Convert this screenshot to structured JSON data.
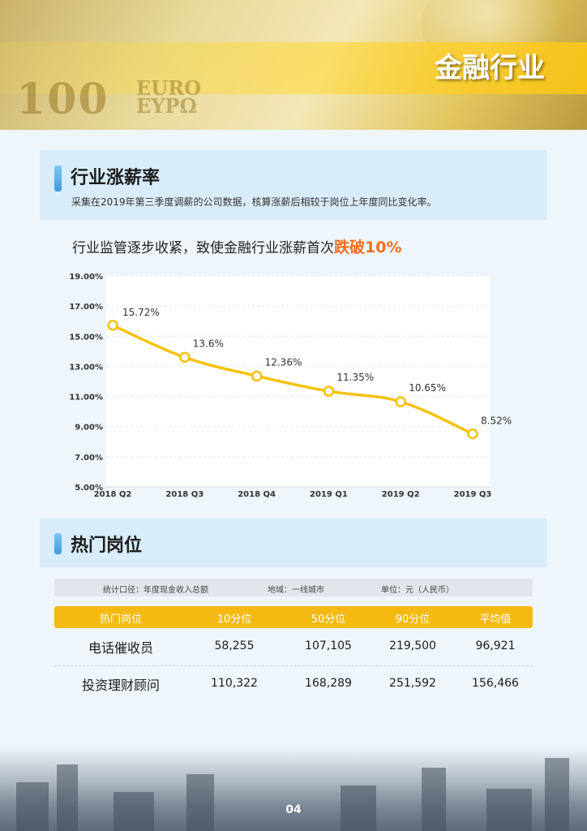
{
  "header": {
    "title": "金融行业",
    "note_value": "100",
    "note_text_top": "EURO",
    "note_text_bottom": "ΕΥΡΩ"
  },
  "section1": {
    "title": "行业涨薪率",
    "description": "采集在2019年第三季度调薪的公司数据，核算涨薪后相较于岗位上年度同比变化率。",
    "headline_prefix": "行业监管逐步收紧，致使金融行业涨薪首次",
    "headline_highlight": "跌破10%"
  },
  "chart_data": {
    "type": "line",
    "categories": [
      "2018 Q2",
      "2018 Q3",
      "2018 Q4",
      "2019 Q1",
      "2019 Q2",
      "2019 Q3"
    ],
    "values": [
      15.72,
      13.6,
      12.36,
      11.35,
      10.65,
      8.52
    ],
    "data_labels": [
      "15.72%",
      "13.6%",
      "12.36%",
      "11.35%",
      "10.65%",
      "8.52%"
    ],
    "yticks": [
      "5.00%",
      "7.00%",
      "9.00%",
      "11.00%",
      "13.00%",
      "15.00%",
      "17.00%",
      "19.00%"
    ],
    "ylim": [
      5,
      19
    ],
    "grid": true,
    "line_color": "#f5c20c",
    "title": "",
    "xlabel": "",
    "ylabel": ""
  },
  "section2": {
    "title": "热门岗位",
    "meta": {
      "caliber": "统计口径：年度现金收入总额",
      "region": "地域：一线城市",
      "unit": "单位：元（人民币）"
    },
    "table": {
      "headers": [
        "热门岗位",
        "10分位",
        "50分位",
        "90分位",
        "平均值"
      ],
      "rows": [
        [
          "电话催收员",
          "58,255",
          "107,105",
          "219,500",
          "96,921"
        ],
        [
          "投资理财顾问",
          "110,322",
          "168,289",
          "251,592",
          "156,466"
        ]
      ]
    }
  },
  "footer": {
    "page_number": "04"
  },
  "colors": {
    "accent": "#f5ba12",
    "highlight": "#f37020",
    "section_bg": "#d9ecf9",
    "section_bar": "#3a9fe0"
  }
}
